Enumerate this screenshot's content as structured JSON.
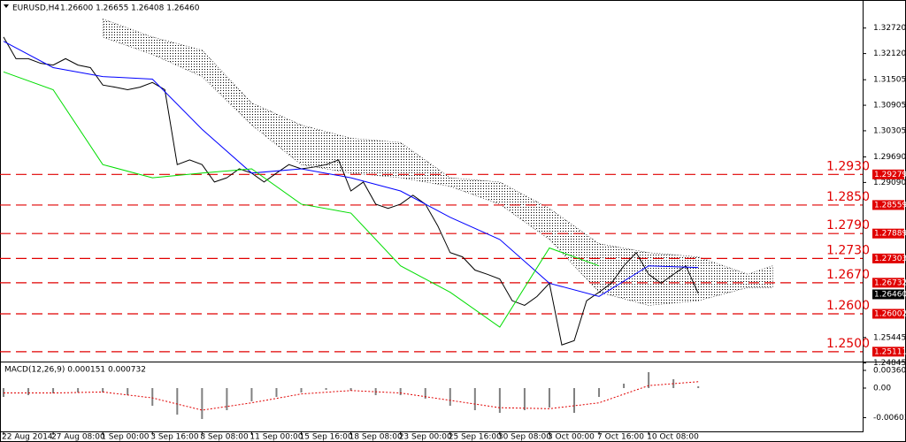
{
  "chart_data": {
    "type": "line",
    "symbol": "EURUSD,H4",
    "quote": "1.26600 1.26655 1.26408 1.26460",
    "xlim": [
      -1,
      277
    ],
    "xticks": [
      {
        "value": 0,
        "label": "22 Aug 2014"
      },
      {
        "value": 16,
        "label": "27 Aug 08:00"
      },
      {
        "value": 32,
        "label": "1 Sep 00:00"
      },
      {
        "value": 48,
        "label": "3 Sep 16:00"
      },
      {
        "value": 64,
        "label": "8 Sep 08:00"
      },
      {
        "value": 80,
        "label": "11 Sep 00:00"
      },
      {
        "value": 96,
        "label": "15 Sep 16:00"
      },
      {
        "value": 112,
        "label": "18 Sep 08:00"
      },
      {
        "value": 128,
        "label": "23 Sep 00:00"
      },
      {
        "value": 144,
        "label": "25 Sep 16:00"
      },
      {
        "value": 160,
        "label": "30 Sep 08:00"
      },
      {
        "value": 176,
        "label": "3 Oct 00:00"
      },
      {
        "value": 192,
        "label": "7 Oct 16:00"
      },
      {
        "value": 208,
        "label": "10 Oct 08:00"
      }
    ],
    "ylim": [
      1.249,
      1.3313
    ],
    "yticks": [
      {
        "value": 1.3272,
        "label": "1.32720"
      },
      {
        "value": 1.3212,
        "label": "1.32120"
      },
      {
        "value": 1.31505,
        "label": "1.31505"
      },
      {
        "value": 1.30905,
        "label": "1.30905"
      },
      {
        "value": 1.30305,
        "label": "1.30305"
      },
      {
        "value": 1.2969,
        "label": "1.29690"
      },
      {
        "value": 1.2909,
        "label": "1.29090"
      },
      {
        "value": 1.25445,
        "label": "1.25445"
      },
      {
        "value": 1.24845,
        "label": "1.24845"
      }
    ],
    "current_price": {
      "value": 1.2646,
      "label": "1.26460"
    },
    "levels": [
      {
        "value": 1.29279,
        "label": "1.2930"
      },
      {
        "value": 1.28559,
        "label": "1.2850"
      },
      {
        "value": 1.27889,
        "label": "1.2790"
      },
      {
        "value": 1.27303,
        "label": "1.2730"
      },
      {
        "value": 1.26732,
        "label": "1.2670"
      },
      {
        "value": 1.26002,
        "label": "1.2600"
      },
      {
        "value": 1.25111,
        "label": "1.2500"
      }
    ],
    "level_color": "#e00000",
    "series": [
      {
        "color": "#000000",
        "x": [
          0,
          4,
          8,
          12,
          16,
          20,
          24,
          28,
          32,
          36,
          40,
          44,
          48,
          52,
          56,
          60,
          64,
          68,
          72,
          76,
          80,
          84,
          88,
          92,
          96,
          100,
          104,
          108,
          112,
          116,
          120,
          124,
          128,
          132,
          136,
          140,
          144,
          148,
          152,
          156,
          160,
          164,
          168,
          172,
          176,
          180,
          184,
          188,
          192,
          196,
          200,
          204,
          208,
          212,
          216,
          220,
          224
        ],
        "values": [
          1.3251,
          1.32,
          1.32,
          1.3189,
          1.3185,
          1.32,
          1.3185,
          1.3179,
          1.3138,
          1.3133,
          1.3127,
          1.3133,
          1.3144,
          1.3127,
          1.2951,
          1.2962,
          1.2951,
          1.291,
          1.292,
          1.2941,
          1.2931,
          1.291,
          1.2931,
          1.2951,
          1.2941,
          1.2945,
          1.2951,
          1.2962,
          1.2889,
          1.291,
          1.2858,
          1.2848,
          1.2858,
          1.2879,
          1.2858,
          1.2807,
          1.2744,
          1.2734,
          1.2703,
          1.2693,
          1.2682,
          1.2631,
          1.262,
          1.2641,
          1.2672,
          1.2527,
          1.2537,
          1.2631,
          1.2651,
          1.2672,
          1.2713,
          1.2744,
          1.2693,
          1.2672,
          1.2693,
          1.2713,
          1.2648
        ]
      },
      {
        "color": "#0000ff",
        "x": [
          0,
          16,
          32,
          48,
          64,
          80,
          96,
          112,
          128,
          144,
          160,
          176,
          192,
          208,
          224
        ],
        "values": [
          1.3241,
          1.3179,
          1.3158,
          1.3152,
          1.3034,
          1.2931,
          1.2941,
          1.292,
          1.2889,
          1.2827,
          1.2775,
          1.2672,
          1.2641,
          1.2713,
          1.2709
        ]
      },
      {
        "color": "#00dd00",
        "x": [
          0,
          16,
          32,
          48,
          64,
          80,
          96,
          112,
          128,
          144,
          160,
          176,
          192
        ],
        "values": [
          1.3169,
          1.3127,
          1.2951,
          1.292,
          1.2931,
          1.2941,
          1.2858,
          1.2837,
          1.2713,
          1.2651,
          1.2569,
          1.2755,
          1.2713
        ]
      }
    ],
    "cloud": {
      "x": [
        32,
        48,
        64,
        80,
        96,
        112,
        128,
        144,
        160,
        176,
        192,
        208,
        224,
        240,
        248
      ],
      "upper": [
        1.3293,
        1.3251,
        1.322,
        1.3096,
        1.3044,
        1.3013,
        1.3003,
        1.292,
        1.291,
        1.2848,
        1.2765,
        1.2744,
        1.2734,
        1.2693,
        1.2713
      ],
      "lower": [
        1.3251,
        1.321,
        1.3158,
        1.3044,
        1.2951,
        1.2931,
        1.292,
        1.29,
        1.2858,
        1.2775,
        1.2651,
        1.262,
        1.2631,
        1.2662,
        1.2662
      ]
    },
    "macd": {
      "title": "MACD(12,26,9) 0.000151 0.000732",
      "ylim": [
        -0.00864,
        0.00504
      ],
      "yticks": [
        {
          "value": 0.003601,
          "label": "0.003601"
        },
        {
          "value": 0,
          "label": "0.00"
        },
        {
          "value": -0.00603,
          "label": "-0.00603"
        }
      ],
      "x": [
        0,
        8,
        16,
        24,
        32,
        40,
        48,
        56,
        64,
        72,
        80,
        88,
        96,
        104,
        112,
        120,
        128,
        136,
        144,
        152,
        160,
        168,
        176,
        184,
        192,
        200,
        208,
        216,
        224
      ],
      "values": [
        -0.0018,
        -0.00144,
        -0.00108,
        -0.0009,
        -0.0009,
        -0.00144,
        -0.0036,
        -0.0054,
        -0.0063,
        -0.0045,
        -0.0027,
        -0.0018,
        -0.0009,
        -0.00036,
        -0.00054,
        -0.00144,
        -0.00144,
        -0.00216,
        -0.0036,
        -0.0045,
        -0.00504,
        -0.0045,
        -0.00396,
        -0.00504,
        -0.0018,
        0.0009,
        0.00324,
        0.0018,
        0.00036
      ],
      "color": "#808080",
      "signal_x": [
        0,
        16,
        32,
        48,
        64,
        80,
        96,
        112,
        128,
        144,
        160,
        176,
        192,
        208,
        224
      ],
      "signal": [
        -0.001,
        -0.001,
        -0.0008,
        -0.002,
        -0.0045,
        -0.003,
        -0.0012,
        -0.0005,
        -0.001,
        -0.0025,
        -0.004,
        -0.0042,
        -0.003,
        0.0005,
        0.0013
      ],
      "signal_color": "#e00000"
    }
  }
}
